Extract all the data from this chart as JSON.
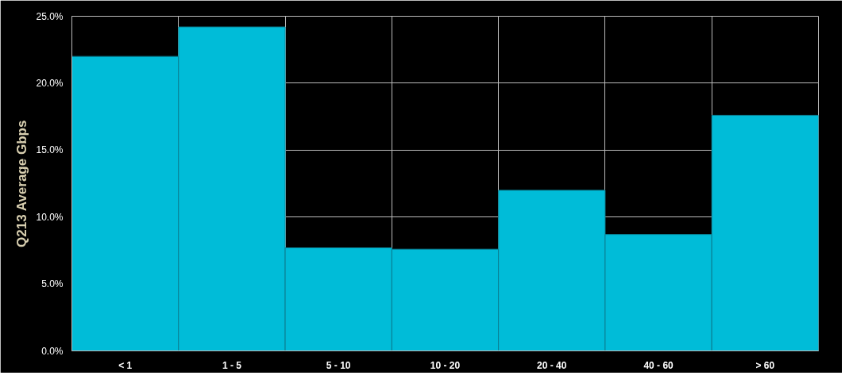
{
  "chart_data": {
    "type": "bar",
    "ylabel": "Q213 Average Gbps",
    "categories": [
      "< 1",
      "1 - 5",
      "5 - 10",
      "10 - 20",
      "20 - 40",
      "40 - 60",
      "> 60"
    ],
    "values": [
      22.0,
      24.2,
      7.7,
      7.6,
      12.0,
      8.7,
      17.6
    ],
    "color": "#00bcd8",
    "ylim": [
      0,
      25
    ],
    "yticks": [
      {
        "value": 0,
        "label": "0.0%"
      },
      {
        "value": 5,
        "label": "5.0%"
      },
      {
        "value": 10,
        "label": "10.0%"
      },
      {
        "value": 15,
        "label": "15.0%"
      },
      {
        "value": 20,
        "label": "20.0%"
      },
      {
        "value": 25,
        "label": "25.0%"
      }
    ],
    "grid": true
  }
}
